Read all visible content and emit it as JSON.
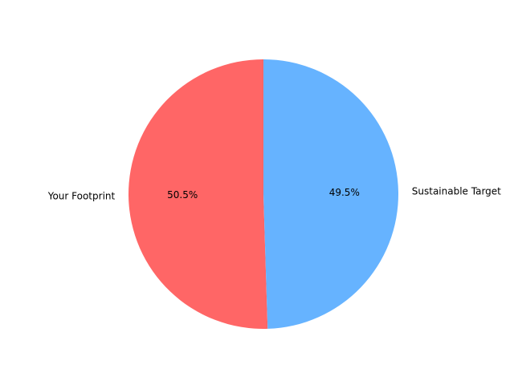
{
  "chart_data": {
    "type": "pie",
    "title": "",
    "start_angle_deg": 90,
    "direction": "counterclockwise",
    "slices": [
      {
        "label": "Your Footprint",
        "value": 50.5,
        "pct_label": "50.5%",
        "color": "#ff6666"
      },
      {
        "label": "Sustainable Target",
        "value": 49.5,
        "pct_label": "49.5%",
        "color": "#66b3ff"
      }
    ]
  }
}
